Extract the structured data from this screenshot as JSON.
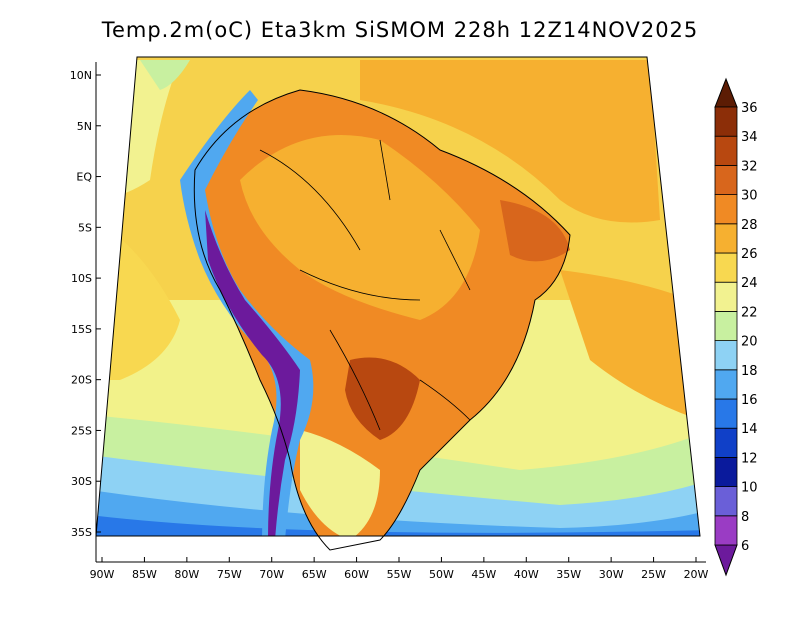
{
  "title": "Temp.2m(oC) Eta3km SiSMOM 228h 12Z14NOV2025",
  "map": {
    "variable": "2 m temperature",
    "units": "oC",
    "region": "South America",
    "lat_labels": [
      "10N",
      "5N",
      "EQ",
      "5S",
      "10S",
      "15S",
      "20S",
      "25S",
      "30S",
      "35S"
    ],
    "lat_values": [
      10,
      5,
      0,
      -5,
      -10,
      -15,
      -20,
      -25,
      -30,
      -35
    ],
    "lon_labels": [
      "90W",
      "85W",
      "80W",
      "75W",
      "70W",
      "65W",
      "60W",
      "55W",
      "50W",
      "45W",
      "40W",
      "35W",
      "30W",
      "25W",
      "20W"
    ],
    "lon_values": [
      -90,
      -85,
      -80,
      -75,
      -70,
      -65,
      -60,
      -55,
      -50,
      -45,
      -40,
      -35,
      -30,
      -25,
      -20
    ]
  },
  "colorbar": {
    "labels": [
      "6",
      "8",
      "10",
      "12",
      "14",
      "16",
      "18",
      "20",
      "22",
      "24",
      "26",
      "28",
      "30",
      "32",
      "34",
      "36"
    ],
    "levels": [
      6,
      8,
      10,
      12,
      14,
      16,
      18,
      20,
      22,
      24,
      26,
      28,
      30,
      32,
      34,
      36
    ],
    "colors": [
      "#6c1a9c",
      "#9a3cc4",
      "#6a5fd8",
      "#0a1a9c",
      "#1040c8",
      "#2878e8",
      "#50a8f0",
      "#8ed2f4",
      "#c8f0a0",
      "#f2f290",
      "#f8d850",
      "#f6b030",
      "#f08a24",
      "#d8661c",
      "#b84810",
      "#8c2e08",
      "#5c1c04"
    ]
  },
  "icon_names": [
    "colorbar-top-arrow-icon",
    "colorbar-bottom-arrow-icon"
  ]
}
